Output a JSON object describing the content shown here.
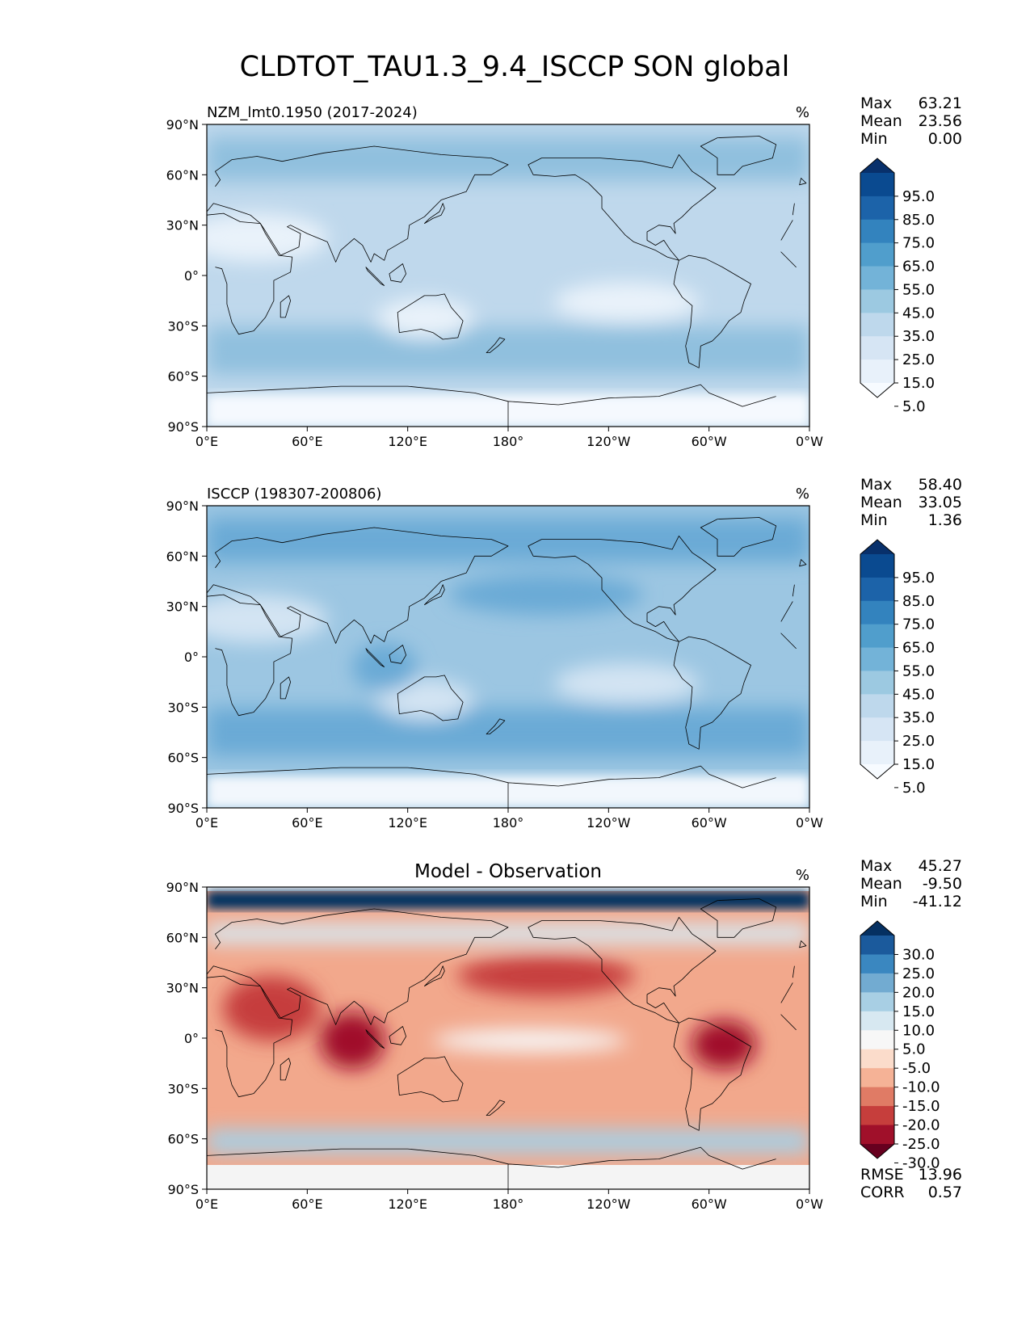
{
  "figure_title": "CLDTOT_TAU1.3_9.4_ISCCP SON global",
  "chart_data": [
    {
      "type": "heatmap",
      "panel_title": "NZM_lmt0.1950 (2017-2024)",
      "center_title": "",
      "units": "%",
      "x_ticks": [
        "0°E",
        "60°E",
        "120°E",
        "180°",
        "120°W",
        "60°W",
        "0°W"
      ],
      "y_ticks": [
        "90°N",
        "60°N",
        "30°N",
        "0°",
        "30°S",
        "60°S",
        "90°S"
      ],
      "stats": [
        {
          "label": "Max",
          "value": "63.21"
        },
        {
          "label": "Mean",
          "value": "23.56"
        },
        {
          "label": "Min",
          "value": "0.00"
        }
      ],
      "colorbar": {
        "labels": [
          "95.0",
          "85.0",
          "75.0",
          "65.0",
          "55.0",
          "45.0",
          "35.0",
          "25.0",
          "15.0",
          "5.0"
        ],
        "colors": [
          "#08306b",
          "#0a4a90",
          "#1c63a9",
          "#3383be",
          "#509ecc",
          "#73b3d8",
          "#9cc9e1",
          "#bed8ec",
          "#d6e5f4",
          "#e8f1fa",
          "#f7fbff"
        ]
      },
      "field_colors": {
        "background": "#bfd8ec",
        "low": "#e9f2fa",
        "high": "#90c0de",
        "ice": "#f5f9fe"
      }
    },
    {
      "type": "heatmap",
      "panel_title": "ISCCP (198307-200806)",
      "center_title": "",
      "units": "%",
      "x_ticks": [
        "0°E",
        "60°E",
        "120°E",
        "180°",
        "120°W",
        "60°W",
        "0°W"
      ],
      "y_ticks": [
        "90°N",
        "60°N",
        "30°N",
        "0°",
        "30°S",
        "60°S",
        "90°S"
      ],
      "stats": [
        {
          "label": "Max",
          "value": "58.40"
        },
        {
          "label": "Mean",
          "value": "33.05"
        },
        {
          "label": "Min",
          "value": "1.36"
        }
      ],
      "colorbar": {
        "labels": [
          "95.0",
          "85.0",
          "75.0",
          "65.0",
          "55.0",
          "45.0",
          "35.0",
          "25.0",
          "15.0",
          "5.0"
        ],
        "colors": [
          "#08306b",
          "#0a4a90",
          "#1c63a9",
          "#3383be",
          "#509ecc",
          "#73b3d8",
          "#9cc9e1",
          "#bed8ec",
          "#d6e5f4",
          "#e8f1fa",
          "#f7fbff"
        ]
      },
      "field_colors": {
        "background": "#9cc6e2",
        "low": "#d3e4f3",
        "high": "#6aaad6",
        "ice": "#f2f7fd"
      }
    },
    {
      "type": "heatmap",
      "panel_title": "",
      "center_title": "Model - Observation",
      "units": "%",
      "x_ticks": [
        "0°E",
        "60°E",
        "120°E",
        "180°",
        "120°W",
        "60°W",
        "0°W"
      ],
      "y_ticks": [
        "90°N",
        "60°N",
        "30°N",
        "0°",
        "30°S",
        "60°S",
        "90°S"
      ],
      "stats": [
        {
          "label": "Max",
          "value": "45.27"
        },
        {
          "label": "Mean",
          "value": "-9.50"
        },
        {
          "label": "Min",
          "value": "-41.12"
        }
      ],
      "colorbar": {
        "labels": [
          "30.0",
          "25.0",
          "20.0",
          "15.0",
          "10.0",
          "5.0",
          "-5.0",
          "-10.0",
          "-15.0",
          "-20.0",
          "-25.0",
          "-30.0"
        ],
        "colors": [
          "#053061",
          "#1b5a9c",
          "#3a87c0",
          "#72abd1",
          "#a8cfe4",
          "#d7e8f1",
          "#f7f7f7",
          "#fbdccb",
          "#f5b296",
          "#e07b65",
          "#c63e3c",
          "#a0102a",
          "#67001f"
        ]
      },
      "field_colors": {
        "background": "#f2a88c",
        "low": "#fbdccb",
        "high": "#c63e3c",
        "ice": "#f4f4f4"
      },
      "metrics": [
        {
          "label": "RMSE",
          "value": "13.96"
        },
        {
          "label": "CORR",
          "value": "0.57"
        }
      ]
    }
  ]
}
